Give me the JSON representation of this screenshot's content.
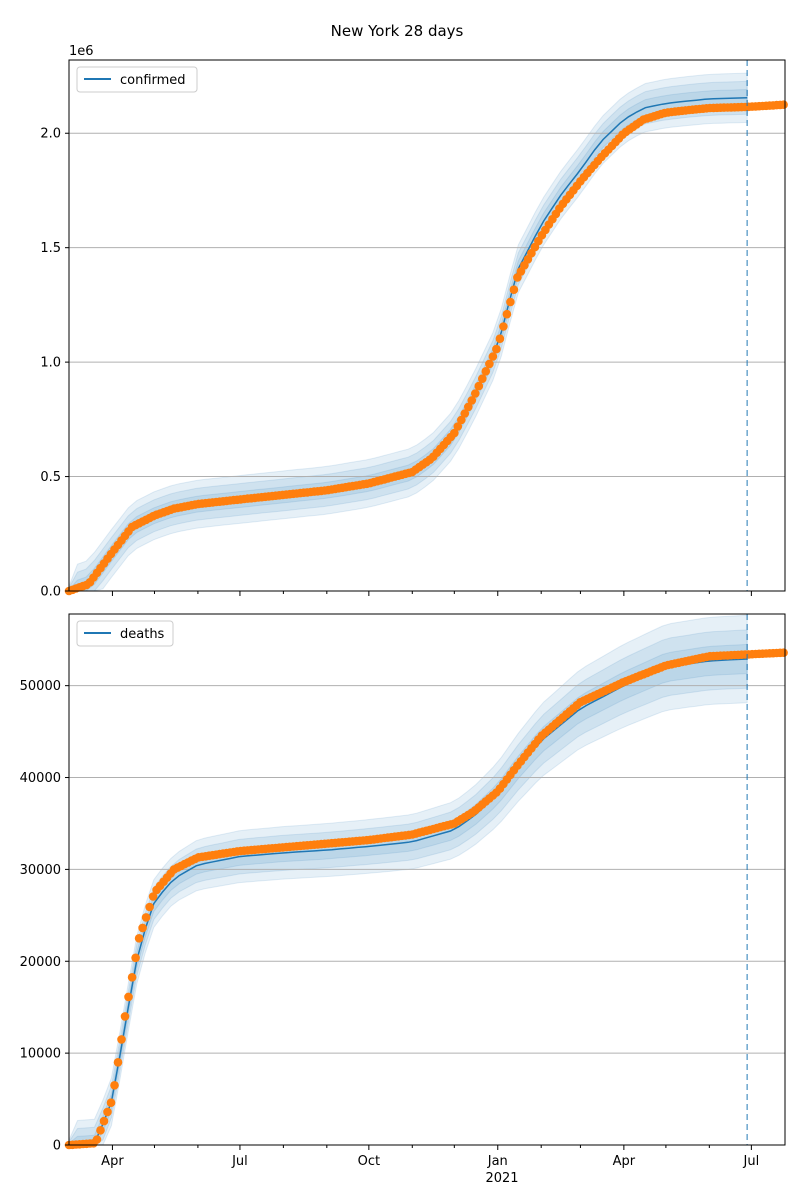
{
  "figure": {
    "title": "New York 28 days"
  },
  "colors": {
    "model": "#1f77b4",
    "observed": "#ff7f0e",
    "band": "#1f77b4",
    "grid": "#b0b0b0",
    "vline": "#1f77b4"
  },
  "chart_data": [
    {
      "type": "line",
      "title": "",
      "ylabel": "",
      "xlabel": "",
      "y_offset_label": "1e6",
      "ylim": [
        0,
        2320000
      ],
      "y_ticks": [
        0,
        500000,
        1000000,
        1500000,
        2000000
      ],
      "y_tick_labels": [
        "0.0",
        "0.5",
        "1.0",
        "1.5",
        "2.0"
      ],
      "grid": "horizontal",
      "legend_position": "upper-left",
      "forecast_start": "2021-06-28",
      "series": [
        {
          "name": "confirmed",
          "kind": "model-with-uncertainty-bands",
          "x": [
            "2020-03-01",
            "2020-03-15",
            "2020-04-01",
            "2020-04-15",
            "2020-05-01",
            "2020-05-15",
            "2020-06-01",
            "2020-07-01",
            "2020-08-01",
            "2020-09-01",
            "2020-10-01",
            "2020-11-01",
            "2020-11-15",
            "2020-12-01",
            "2020-12-15",
            "2021-01-01",
            "2021-01-15",
            "2021-02-01",
            "2021-02-15",
            "2021-03-01",
            "2021-03-15",
            "2021-04-01",
            "2021-04-15",
            "2021-05-01",
            "2021-05-15",
            "2021-06-01",
            "2021-06-28"
          ],
          "y": [
            0,
            30000,
            170000,
            280000,
            330000,
            360000,
            380000,
            400000,
            420000,
            440000,
            470000,
            520000,
            580000,
            690000,
            850000,
            1070000,
            1400000,
            1600000,
            1730000,
            1840000,
            1960000,
            2060000,
            2110000,
            2130000,
            2140000,
            2150000,
            2155000
          ]
        },
        {
          "name": "confirmed observed",
          "kind": "observed-dots",
          "x": [
            "2020-03-01",
            "2020-03-15",
            "2020-04-01",
            "2020-04-15",
            "2020-05-01",
            "2020-05-15",
            "2020-06-01",
            "2020-07-01",
            "2020-08-01",
            "2020-09-01",
            "2020-10-01",
            "2020-11-01",
            "2020-11-15",
            "2020-12-01",
            "2020-12-15",
            "2021-01-01",
            "2021-01-15",
            "2021-02-01",
            "2021-02-15",
            "2021-03-01",
            "2021-03-15",
            "2021-04-01",
            "2021-04-15",
            "2021-05-01",
            "2021-05-15",
            "2021-06-01",
            "2021-06-28",
            "2021-07-25"
          ],
          "y": [
            0,
            30000,
            170000,
            280000,
            330000,
            360000,
            380000,
            400000,
            420000,
            440000,
            470000,
            520000,
            580000,
            690000,
            850000,
            1070000,
            1370000,
            1550000,
            1680000,
            1790000,
            1890000,
            2000000,
            2060000,
            2090000,
            2100000,
            2110000,
            2115000,
            2125000
          ]
        }
      ]
    },
    {
      "type": "line",
      "title": "",
      "ylabel": "",
      "xlabel": "",
      "ylim": [
        0,
        57800
      ],
      "y_ticks": [
        0,
        10000,
        20000,
        30000,
        40000,
        50000
      ],
      "y_tick_labels": [
        "0",
        "10000",
        "20000",
        "30000",
        "40000",
        "50000"
      ],
      "x_ticks": [
        "2020-04-01",
        "2020-07-01",
        "2020-10-01",
        "2021-01-01",
        "2021-04-01",
        "2021-07-01"
      ],
      "x_tick_labels": [
        "Apr",
        "Jul",
        "Oct",
        "Jan",
        "Apr",
        "Jul"
      ],
      "x_year_label": "2021",
      "xlim": [
        "2020-03-01",
        "2021-07-25"
      ],
      "grid": "horizontal",
      "legend_position": "upper-left",
      "forecast_start": "2021-06-28",
      "series": [
        {
          "name": "deaths",
          "kind": "model-with-uncertainty-bands",
          "x": [
            "2020-03-01",
            "2020-03-20",
            "2020-04-01",
            "2020-04-10",
            "2020-04-20",
            "2020-05-01",
            "2020-05-15",
            "2020-06-01",
            "2020-07-01",
            "2020-08-01",
            "2020-09-01",
            "2020-10-01",
            "2020-11-01",
            "2020-12-01",
            "2020-12-15",
            "2021-01-01",
            "2021-01-15",
            "2021-02-01",
            "2021-03-01",
            "2021-04-01",
            "2021-05-01",
            "2021-06-01",
            "2021-06-28"
          ],
          "y": [
            0,
            200,
            5000,
            13000,
            21500,
            26500,
            29000,
            30500,
            31400,
            31800,
            32100,
            32500,
            33000,
            34300,
            35800,
            38200,
            41000,
            44000,
            47500,
            50000,
            52000,
            52700,
            52900
          ]
        },
        {
          "name": "deaths observed",
          "kind": "observed-dots",
          "x": [
            "2020-03-01",
            "2020-03-20",
            "2020-04-01",
            "2020-04-10",
            "2020-04-20",
            "2020-05-01",
            "2020-05-15",
            "2020-06-01",
            "2020-07-01",
            "2020-08-01",
            "2020-09-01",
            "2020-10-01",
            "2020-11-01",
            "2020-12-01",
            "2020-12-15",
            "2021-01-01",
            "2021-01-15",
            "2021-02-01",
            "2021-03-01",
            "2021-04-01",
            "2021-05-01",
            "2021-06-01",
            "2021-06-28",
            "2021-07-25"
          ],
          "y": [
            0,
            200,
            5000,
            14000,
            22500,
            27500,
            30000,
            31300,
            32000,
            32400,
            32800,
            33200,
            33800,
            35000,
            36300,
            38500,
            41300,
            44500,
            48200,
            50400,
            52200,
            53200,
            53400,
            53600
          ]
        }
      ]
    }
  ]
}
